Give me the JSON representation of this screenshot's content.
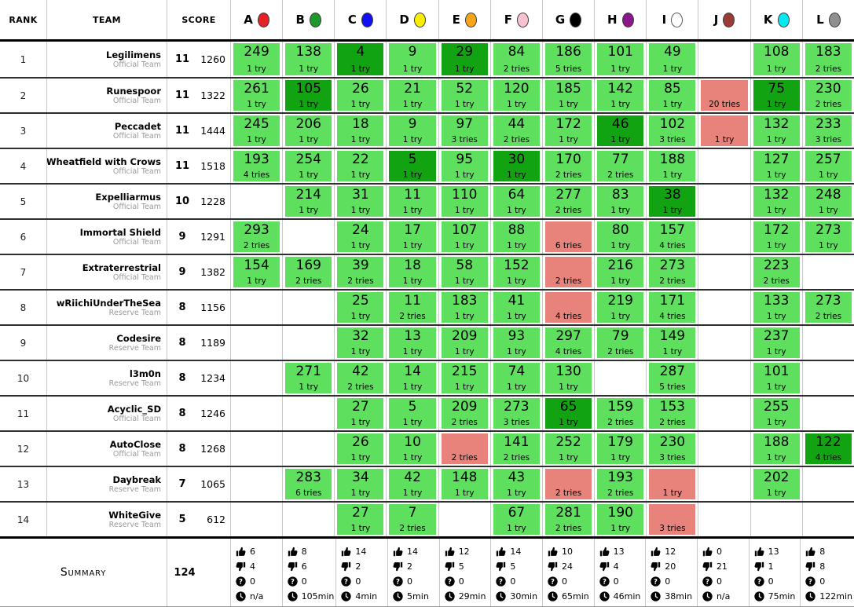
{
  "header": {
    "rank_label": "RANK",
    "team_label": "TEAM",
    "score_label": "SCORE",
    "problems": [
      {
        "letter": "A",
        "balloon_color": "#e62227"
      },
      {
        "letter": "B",
        "balloon_color": "#1d9a27"
      },
      {
        "letter": "C",
        "balloon_color": "#1010f0"
      },
      {
        "letter": "D",
        "balloon_color": "#fdee00"
      },
      {
        "letter": "E",
        "balloon_color": "#f7a51b"
      },
      {
        "letter": "F",
        "balloon_color": "#f8c3d0"
      },
      {
        "letter": "G",
        "balloon_color": "#000000"
      },
      {
        "letter": "H",
        "balloon_color": "#8d168d"
      },
      {
        "letter": "I",
        "balloon_color": "#ffffff"
      },
      {
        "letter": "J",
        "balloon_color": "#9d3a34"
      },
      {
        "letter": "K",
        "balloon_color": "#06e9f5"
      },
      {
        "letter": "L",
        "balloon_color": "#8f8f8f"
      }
    ]
  },
  "colors": {
    "correct": "#5ee05e",
    "first": "#12a312",
    "incorrect": "#e8837b"
  },
  "cell_states": {
    "c": "correct",
    "f": "first-to-solve",
    "x": "incorrect",
    "e": "no-submission"
  },
  "rows": [
    {
      "rank": "1",
      "team": "Legilimens",
      "team_type": "Official Team",
      "solved": "11",
      "time": "1260",
      "cells": [
        [
          "c",
          "249",
          "1 try"
        ],
        [
          "c",
          "138",
          "1 try"
        ],
        [
          "f",
          "4",
          "1 try"
        ],
        [
          "c",
          "9",
          "1 try"
        ],
        [
          "f",
          "29",
          "1 try"
        ],
        [
          "c",
          "84",
          "2 tries"
        ],
        [
          "c",
          "186",
          "5 tries"
        ],
        [
          "c",
          "101",
          "1 try"
        ],
        [
          "c",
          "49",
          "1 try"
        ],
        [
          "e"
        ],
        [
          "c",
          "108",
          "1 try"
        ],
        [
          "c",
          "183",
          "2 tries"
        ]
      ]
    },
    {
      "rank": "2",
      "team": "Runespoor",
      "team_type": "Official Team",
      "solved": "11",
      "time": "1322",
      "cells": [
        [
          "c",
          "261",
          "1 try"
        ],
        [
          "f",
          "105",
          "1 try"
        ],
        [
          "c",
          "26",
          "1 try"
        ],
        [
          "c",
          "21",
          "1 try"
        ],
        [
          "c",
          "52",
          "1 try"
        ],
        [
          "c",
          "120",
          "1 try"
        ],
        [
          "c",
          "185",
          "1 try"
        ],
        [
          "c",
          "142",
          "1 try"
        ],
        [
          "c",
          "85",
          "1 try"
        ],
        [
          "x",
          "",
          "20 tries"
        ],
        [
          "f",
          "75",
          "1 try"
        ],
        [
          "c",
          "230",
          "2 tries"
        ]
      ]
    },
    {
      "rank": "3",
      "team": "Peccadet",
      "team_type": "Official Team",
      "solved": "11",
      "time": "1444",
      "cells": [
        [
          "c",
          "245",
          "1 try"
        ],
        [
          "c",
          "206",
          "1 try"
        ],
        [
          "c",
          "18",
          "1 try"
        ],
        [
          "c",
          "9",
          "1 try"
        ],
        [
          "c",
          "97",
          "3 tries"
        ],
        [
          "c",
          "44",
          "2 tries"
        ],
        [
          "c",
          "172",
          "1 try"
        ],
        [
          "f",
          "46",
          "1 try"
        ],
        [
          "c",
          "102",
          "3 tries"
        ],
        [
          "x",
          "",
          "1 try"
        ],
        [
          "c",
          "132",
          "1 try"
        ],
        [
          "c",
          "233",
          "3 tries"
        ]
      ]
    },
    {
      "rank": "4",
      "team": "Wheatfield with Crows",
      "team_type": "Official Team",
      "solved": "11",
      "time": "1518",
      "cells": [
        [
          "c",
          "193",
          "4 tries"
        ],
        [
          "c",
          "254",
          "1 try"
        ],
        [
          "c",
          "22",
          "1 try"
        ],
        [
          "f",
          "5",
          "1 try"
        ],
        [
          "c",
          "95",
          "1 try"
        ],
        [
          "f",
          "30",
          "1 try"
        ],
        [
          "c",
          "170",
          "2 tries"
        ],
        [
          "c",
          "77",
          "2 tries"
        ],
        [
          "c",
          "188",
          "1 try"
        ],
        [
          "e"
        ],
        [
          "c",
          "127",
          "1 try"
        ],
        [
          "c",
          "257",
          "1 try"
        ]
      ]
    },
    {
      "rank": "5",
      "team": "Expelliarmus",
      "team_type": "Official Team",
      "solved": "10",
      "time": "1228",
      "cells": [
        [
          "e"
        ],
        [
          "c",
          "214",
          "1 try"
        ],
        [
          "c",
          "31",
          "1 try"
        ],
        [
          "c",
          "11",
          "1 try"
        ],
        [
          "c",
          "110",
          "1 try"
        ],
        [
          "c",
          "64",
          "1 try"
        ],
        [
          "c",
          "277",
          "2 tries"
        ],
        [
          "c",
          "83",
          "1 try"
        ],
        [
          "f",
          "38",
          "1 try"
        ],
        [
          "e"
        ],
        [
          "c",
          "132",
          "1 try"
        ],
        [
          "c",
          "248",
          "1 try"
        ]
      ]
    },
    {
      "rank": "6",
      "team": "Immortal Shield",
      "team_type": "Official Team",
      "solved": "9",
      "time": "1291",
      "cells": [
        [
          "c",
          "293",
          "2 tries"
        ],
        [
          "e"
        ],
        [
          "c",
          "24",
          "1 try"
        ],
        [
          "c",
          "17",
          "1 try"
        ],
        [
          "c",
          "107",
          "1 try"
        ],
        [
          "c",
          "88",
          "1 try"
        ],
        [
          "x",
          "",
          "6 tries"
        ],
        [
          "c",
          "80",
          "1 try"
        ],
        [
          "c",
          "157",
          "4 tries"
        ],
        [
          "e"
        ],
        [
          "c",
          "172",
          "1 try"
        ],
        [
          "c",
          "273",
          "1 try"
        ]
      ]
    },
    {
      "rank": "7",
      "team": "Extraterrestrial",
      "team_type": "Official Team",
      "solved": "9",
      "time": "1382",
      "cells": [
        [
          "c",
          "154",
          "1 try"
        ],
        [
          "c",
          "169",
          "2 tries"
        ],
        [
          "c",
          "39",
          "2 tries"
        ],
        [
          "c",
          "18",
          "1 try"
        ],
        [
          "c",
          "58",
          "1 try"
        ],
        [
          "c",
          "152",
          "1 try"
        ],
        [
          "x",
          "",
          "2 tries"
        ],
        [
          "c",
          "216",
          "1 try"
        ],
        [
          "c",
          "273",
          "2 tries"
        ],
        [
          "e"
        ],
        [
          "c",
          "223",
          "2 tries"
        ],
        [
          "e"
        ]
      ]
    },
    {
      "rank": "8",
      "team": "wRiichiUnderTheSea",
      "team_type": "Reserve Team",
      "solved": "8",
      "time": "1156",
      "cells": [
        [
          "e"
        ],
        [
          "e"
        ],
        [
          "c",
          "25",
          "1 try"
        ],
        [
          "c",
          "11",
          "2 tries"
        ],
        [
          "c",
          "183",
          "1 try"
        ],
        [
          "c",
          "41",
          "1 try"
        ],
        [
          "x",
          "",
          "4 tries"
        ],
        [
          "c",
          "219",
          "1 try"
        ],
        [
          "c",
          "171",
          "4 tries"
        ],
        [
          "e"
        ],
        [
          "c",
          "133",
          "1 try"
        ],
        [
          "c",
          "273",
          "2 tries"
        ]
      ]
    },
    {
      "rank": "9",
      "team": "Codesire",
      "team_type": "Reserve Team",
      "solved": "8",
      "time": "1189",
      "cells": [
        [
          "e"
        ],
        [
          "e"
        ],
        [
          "c",
          "32",
          "1 try"
        ],
        [
          "c",
          "13",
          "1 try"
        ],
        [
          "c",
          "209",
          "1 try"
        ],
        [
          "c",
          "93",
          "1 try"
        ],
        [
          "c",
          "297",
          "4 tries"
        ],
        [
          "c",
          "79",
          "2 tries"
        ],
        [
          "c",
          "149",
          "1 try"
        ],
        [
          "e"
        ],
        [
          "c",
          "237",
          "1 try"
        ],
        [
          "e"
        ]
      ]
    },
    {
      "rank": "10",
      "team": "l3m0n",
      "team_type": "Reserve Team",
      "solved": "8",
      "time": "1234",
      "cells": [
        [
          "e"
        ],
        [
          "c",
          "271",
          "1 try"
        ],
        [
          "c",
          "42",
          "2 tries"
        ],
        [
          "c",
          "14",
          "1 try"
        ],
        [
          "c",
          "215",
          "1 try"
        ],
        [
          "c",
          "74",
          "1 try"
        ],
        [
          "c",
          "130",
          "1 try"
        ],
        [
          "e"
        ],
        [
          "c",
          "287",
          "5 tries"
        ],
        [
          "e"
        ],
        [
          "c",
          "101",
          "1 try"
        ],
        [
          "e"
        ]
      ]
    },
    {
      "rank": "11",
      "team": "Acyclic_SD",
      "team_type": "Official Team",
      "solved": "8",
      "time": "1246",
      "cells": [
        [
          "e"
        ],
        [
          "e"
        ],
        [
          "c",
          "27",
          "1 try"
        ],
        [
          "c",
          "5",
          "1 try"
        ],
        [
          "c",
          "209",
          "2 tries"
        ],
        [
          "c",
          "273",
          "3 tries"
        ],
        [
          "f",
          "65",
          "1 try"
        ],
        [
          "c",
          "159",
          "2 tries"
        ],
        [
          "c",
          "153",
          "2 tries"
        ],
        [
          "e"
        ],
        [
          "c",
          "255",
          "1 try"
        ],
        [
          "e"
        ]
      ]
    },
    {
      "rank": "12",
      "team": "AutoClose",
      "team_type": "Official Team",
      "solved": "8",
      "time": "1268",
      "cells": [
        [
          "e"
        ],
        [
          "e"
        ],
        [
          "c",
          "26",
          "1 try"
        ],
        [
          "c",
          "10",
          "1 try"
        ],
        [
          "x",
          "",
          "2 tries"
        ],
        [
          "c",
          "141",
          "2 tries"
        ],
        [
          "c",
          "252",
          "1 try"
        ],
        [
          "c",
          "179",
          "1 try"
        ],
        [
          "c",
          "230",
          "3 tries"
        ],
        [
          "e"
        ],
        [
          "c",
          "188",
          "1 try"
        ],
        [
          "f",
          "122",
          "4 tries"
        ]
      ]
    },
    {
      "rank": "13",
      "team": "Daybreak",
      "team_type": "Reserve Team",
      "solved": "7",
      "time": "1065",
      "cells": [
        [
          "e"
        ],
        [
          "c",
          "283",
          "6 tries"
        ],
        [
          "c",
          "34",
          "1 try"
        ],
        [
          "c",
          "42",
          "1 try"
        ],
        [
          "c",
          "148",
          "1 try"
        ],
        [
          "c",
          "43",
          "1 try"
        ],
        [
          "x",
          "",
          "2 tries"
        ],
        [
          "c",
          "193",
          "2 tries"
        ],
        [
          "x",
          "",
          "1 try"
        ],
        [
          "e"
        ],
        [
          "c",
          "202",
          "1 try"
        ],
        [
          "e"
        ]
      ]
    },
    {
      "rank": "14",
      "team": "WhiteGive",
      "team_type": "Reserve Team",
      "solved": "5",
      "time": "612",
      "cells": [
        [
          "e"
        ],
        [
          "e"
        ],
        [
          "c",
          "27",
          "1 try"
        ],
        [
          "c",
          "7",
          "2 tries"
        ],
        [
          "e"
        ],
        [
          "c",
          "67",
          "1 try"
        ],
        [
          "c",
          "281",
          "2 tries"
        ],
        [
          "c",
          "190",
          "1 try"
        ],
        [
          "x",
          "",
          "3 tries"
        ],
        [
          "e"
        ],
        [
          "e"
        ],
        [
          "e"
        ]
      ]
    }
  ],
  "summary": {
    "label": "Summary",
    "total_solved": "124",
    "icons": {
      "accepted": "thumbs-up-icon",
      "rejected": "thumbs-down-icon",
      "pending": "question-circle-icon",
      "first_time": "clock-icon"
    },
    "problems": [
      {
        "accepted": "6",
        "rejected": "4",
        "pending": "0",
        "first_time": "n/a"
      },
      {
        "accepted": "8",
        "rejected": "6",
        "pending": "0",
        "first_time": "105min"
      },
      {
        "accepted": "14",
        "rejected": "2",
        "pending": "0",
        "first_time": "4min"
      },
      {
        "accepted": "14",
        "rejected": "2",
        "pending": "0",
        "first_time": "5min"
      },
      {
        "accepted": "12",
        "rejected": "5",
        "pending": "0",
        "first_time": "29min"
      },
      {
        "accepted": "14",
        "rejected": "5",
        "pending": "0",
        "first_time": "30min"
      },
      {
        "accepted": "10",
        "rejected": "24",
        "pending": "0",
        "first_time": "65min"
      },
      {
        "accepted": "13",
        "rejected": "4",
        "pending": "0",
        "first_time": "46min"
      },
      {
        "accepted": "12",
        "rejected": "20",
        "pending": "0",
        "first_time": "38min"
      },
      {
        "accepted": "0",
        "rejected": "21",
        "pending": "0",
        "first_time": "n/a"
      },
      {
        "accepted": "13",
        "rejected": "1",
        "pending": "0",
        "first_time": "75min"
      },
      {
        "accepted": "8",
        "rejected": "8",
        "pending": "0",
        "first_time": "122min"
      }
    ]
  }
}
